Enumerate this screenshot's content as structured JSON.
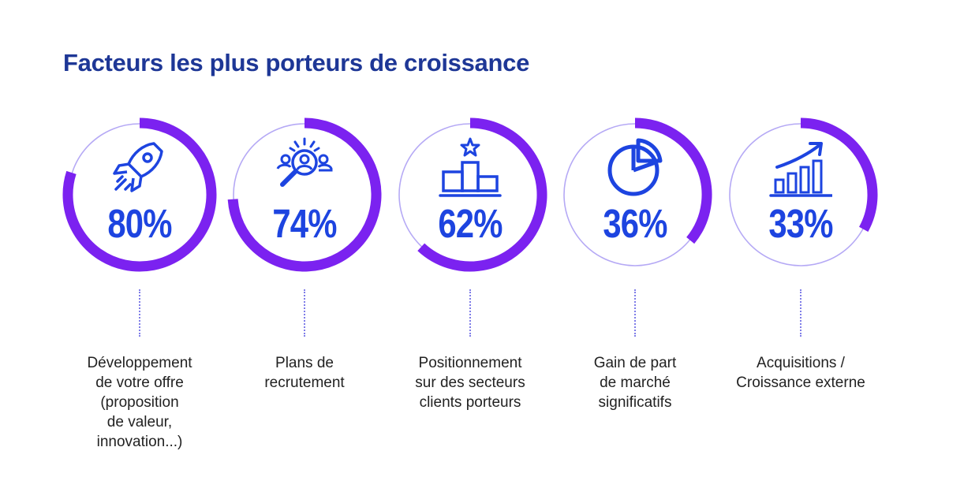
{
  "title": "Facteurs les plus porteurs de croissance",
  "colors": {
    "track": "#b5a9f5",
    "arc": "#7b22f0",
    "value": "#1d44e0",
    "title": "#1e3796"
  },
  "chart_data": {
    "type": "radial-progress",
    "title": "Facteurs les plus porteurs de croissance",
    "unit": "%",
    "max": 100,
    "items": [
      {
        "value": 80,
        "display": "80%",
        "label": "Développement\nde votre offre\n(proposition\nde valeur,\ninnovation...)",
        "icon": "rocket-icon"
      },
      {
        "value": 74,
        "display": "74%",
        "label": "Plans de\nrecrutement",
        "icon": "recruitment-search-icon"
      },
      {
        "value": 62,
        "display": "62%",
        "label": "Positionnement\nsur des secteurs\nclients porteurs",
        "icon": "podium-star-icon"
      },
      {
        "value": 36,
        "display": "36%",
        "label": "Gain de part\nde marché\nsignificatifs",
        "icon": "pie-chart-icon"
      },
      {
        "value": 33,
        "display": "33%",
        "label": "Acquisitions /\nCroissance externe",
        "icon": "growth-chart-icon"
      }
    ]
  }
}
